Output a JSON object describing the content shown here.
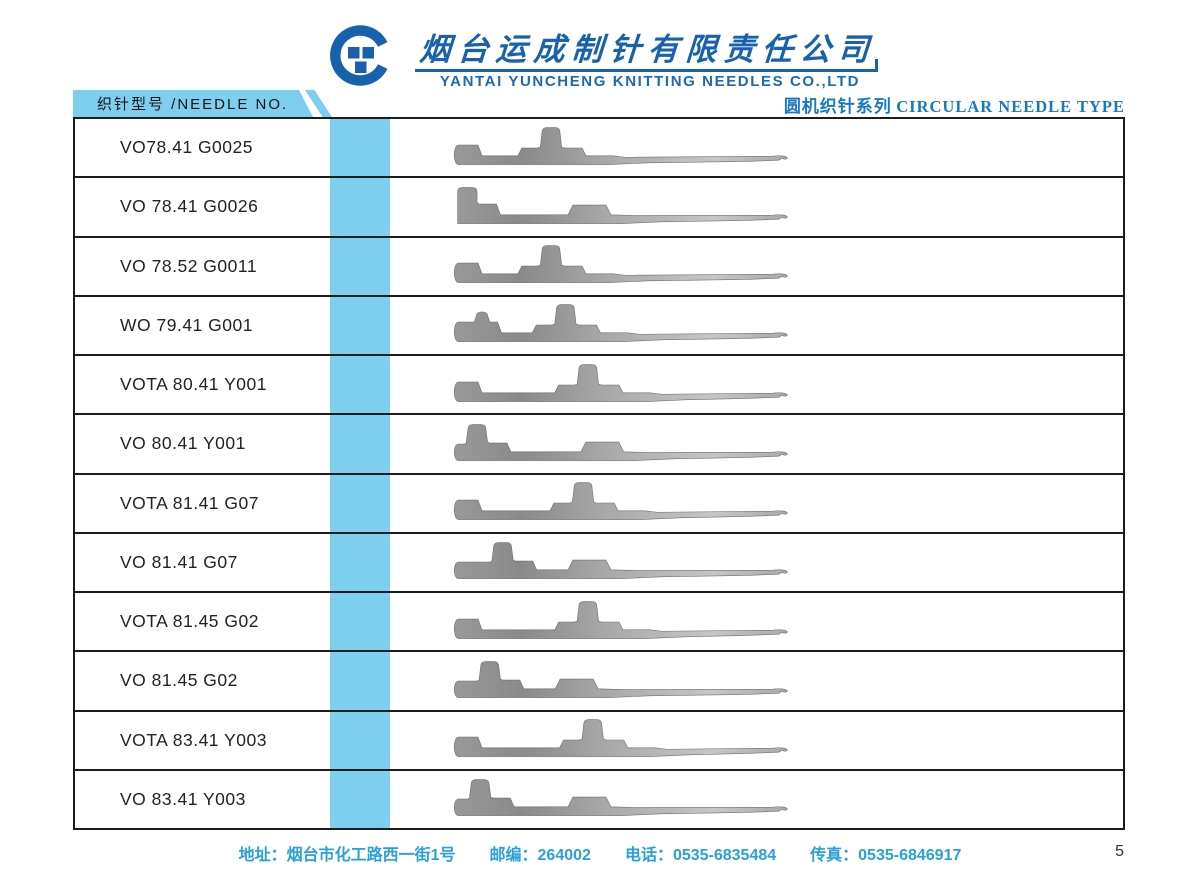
{
  "header": {
    "company_cn": "烟台运成制针有限责任公司",
    "company_en": "YANTAI YUNCHENG KNITTING NEEDLES CO.,LTD",
    "section_label": "织针型号 /NEEDLE NO.",
    "series_cn": "圆机织针系列",
    "series_en": "CIRCULAR NEEDLE TYPE"
  },
  "colors": {
    "brand_blue": "#1761ad",
    "sky_blue": "#7ECEF0",
    "series_blue": "#1779c2",
    "footer_blue": "#2aa0d8",
    "needle_gray": "#a9a9a9"
  },
  "table": {
    "rows": [
      {
        "model": "VO78.41 G0025",
        "needle": {
          "style": "mid",
          "butt": 0.3,
          "bump": null,
          "hump": null
        }
      },
      {
        "model": "VO 78.41 G0026",
        "needle": {
          "style": "left",
          "butt": 0.015,
          "bump": null,
          "hump": 0.42
        }
      },
      {
        "model": "VO 78.52 G0011",
        "needle": {
          "style": "mid",
          "butt": 0.3,
          "bump": null,
          "hump": null
        }
      },
      {
        "model": "WO 79.41 G001",
        "needle": {
          "style": "mid",
          "butt": 0.345,
          "bump": 0.085,
          "hump": null
        }
      },
      {
        "model": "VOTA 80.41 Y001",
        "needle": {
          "style": "mid",
          "butt": 0.415,
          "bump": null,
          "hump": null
        }
      },
      {
        "model": "VO 80.41 Y001",
        "needle": {
          "style": "left",
          "butt": 0.06,
          "bump": null,
          "hump": 0.46
        }
      },
      {
        "model": "VOTA 81.41 G07",
        "needle": {
          "style": "mid",
          "butt": 0.4,
          "bump": null,
          "hump": null
        }
      },
      {
        "model": "VO 81.41 G07",
        "needle": {
          "style": "left",
          "butt": 0.14,
          "bump": null,
          "hump": 0.42
        }
      },
      {
        "model": "VOTA 81.45 G02",
        "needle": {
          "style": "mid",
          "butt": 0.415,
          "bump": null,
          "hump": null
        }
      },
      {
        "model": "VO 81.45 G02",
        "needle": {
          "style": "left",
          "butt": 0.1,
          "bump": null,
          "hump": 0.38
        }
      },
      {
        "model": "VOTA 83.41 Y003",
        "needle": {
          "style": "mid",
          "butt": 0.43,
          "bump": null,
          "hump": null
        }
      },
      {
        "model": "VO 83.41 Y003",
        "needle": {
          "style": "left",
          "butt": 0.07,
          "bump": null,
          "hump": 0.42
        }
      }
    ]
  },
  "footer": {
    "items": [
      "地址：烟台市化工路西一街1号",
      "邮编：264002",
      "电话：0535-6835484",
      "传真：0535-6846917"
    ],
    "page_number": "5"
  }
}
